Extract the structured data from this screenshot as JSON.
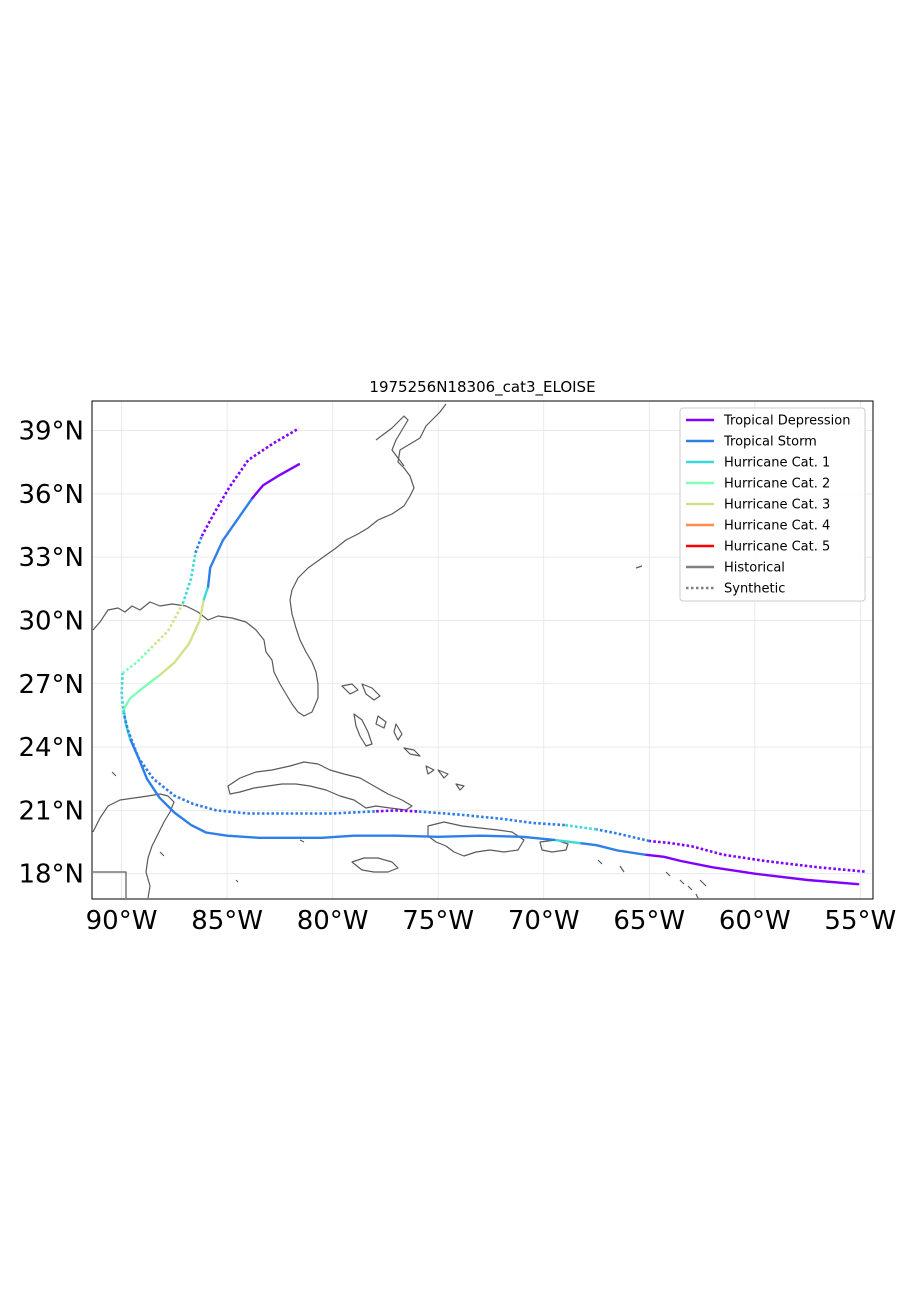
{
  "title": "1975256N18306_cat3_ELOISE",
  "map_extent": {
    "lon": [
      -91.4,
      -54.4
    ],
    "lat": [
      16.8,
      40.4
    ]
  },
  "lon_ticks": [
    {
      "value": -90,
      "label": "90°W"
    },
    {
      "value": -85,
      "label": "85°W"
    },
    {
      "value": -80,
      "label": "80°W"
    },
    {
      "value": -75,
      "label": "75°W"
    },
    {
      "value": -70,
      "label": "70°W"
    },
    {
      "value": -65,
      "label": "65°W"
    },
    {
      "value": -60,
      "label": "60°W"
    },
    {
      "value": -55,
      "label": "55°W"
    }
  ],
  "lat_ticks": [
    {
      "value": 18,
      "label": "18°N"
    },
    {
      "value": 21,
      "label": "21°N"
    },
    {
      "value": 24,
      "label": "24°N"
    },
    {
      "value": 27,
      "label": "27°N"
    },
    {
      "value": 30,
      "label": "30°N"
    },
    {
      "value": 33,
      "label": "33°N"
    },
    {
      "value": 36,
      "label": "36°N"
    },
    {
      "value": 39,
      "label": "39°N"
    }
  ],
  "legend": {
    "position": "top-right",
    "items": [
      {
        "label": "Tropical Depression",
        "color": "#8000ff",
        "style": "solid"
      },
      {
        "label": "Tropical Storm",
        "color": "#2e7fe8",
        "style": "solid"
      },
      {
        "label": "Hurricane Cat. 1",
        "color": "#3ed8d8",
        "style": "solid"
      },
      {
        "label": "Hurricane Cat. 2",
        "color": "#80ffb4",
        "style": "solid"
      },
      {
        "label": "Hurricane Cat. 3",
        "color": "#d4e18a",
        "style": "solid"
      },
      {
        "label": "Hurricane Cat. 4",
        "color": "#ff8a4a",
        "style": "solid"
      },
      {
        "label": "Hurricane Cat. 5",
        "color": "#ff0000",
        "style": "solid"
      },
      {
        "label": "Historical",
        "color": "#808080",
        "style": "solid"
      },
      {
        "label": "Synthetic",
        "color": "#808080",
        "style": "dotted"
      }
    ]
  },
  "chart_data": {
    "type": "map",
    "tracks": [
      {
        "kind": "Historical",
        "segments": [
          {
            "category": "Tropical Depression",
            "points": [
              [
                -55.1,
                17.5
              ],
              [
                -57.5,
                17.7
              ],
              [
                -60,
                18.0
              ],
              [
                -62,
                18.3
              ],
              [
                -63.5,
                18.6
              ],
              [
                -64.3,
                18.8
              ],
              [
                -65.2,
                18.9
              ]
            ]
          },
          {
            "category": "Tropical Storm",
            "points": [
              [
                -65.2,
                18.9
              ],
              [
                -66.5,
                19.1
              ],
              [
                -67.5,
                19.35
              ],
              [
                -68.3,
                19.45
              ]
            ]
          },
          {
            "category": "Hurricane Cat. 1",
            "points": [
              [
                -68.3,
                19.45
              ],
              [
                -69.5,
                19.6
              ]
            ]
          },
          {
            "category": "Tropical Storm",
            "points": [
              [
                -69.5,
                19.6
              ],
              [
                -71,
                19.75
              ],
              [
                -73,
                19.8
              ],
              [
                -75,
                19.75
              ],
              [
                -77,
                19.8
              ],
              [
                -79,
                19.8
              ],
              [
                -80.5,
                19.7
              ],
              [
                -82,
                19.7
              ],
              [
                -83.5,
                19.7
              ],
              [
                -85,
                19.8
              ],
              [
                -86,
                19.95
              ],
              [
                -86.7,
                20.3
              ],
              [
                -87.5,
                20.9
              ],
              [
                -88.2,
                21.6
              ],
              [
                -88.8,
                22.5
              ],
              [
                -89.2,
                23.5
              ],
              [
                -89.6,
                24.4
              ]
            ]
          },
          {
            "category": "Hurricane Cat. 1",
            "points": [
              [
                -89.6,
                24.4
              ],
              [
                -89.8,
                25.1
              ],
              [
                -89.9,
                25.8
              ]
            ]
          },
          {
            "category": "Hurricane Cat. 2",
            "points": [
              [
                -89.9,
                25.8
              ],
              [
                -89.6,
                26.3
              ],
              [
                -89.0,
                26.8
              ],
              [
                -88.2,
                27.4
              ]
            ]
          },
          {
            "category": "Hurricane Cat. 3",
            "points": [
              [
                -88.2,
                27.4
              ],
              [
                -87.5,
                28.0
              ],
              [
                -86.8,
                28.9
              ],
              [
                -86.3,
                30.0
              ],
              [
                -86.1,
                31.0
              ]
            ]
          },
          {
            "category": "Hurricane Cat. 1",
            "points": [
              [
                -86.1,
                31.0
              ],
              [
                -85.9,
                31.6
              ]
            ]
          },
          {
            "category": "Tropical Storm",
            "points": [
              [
                -85.9,
                31.6
              ],
              [
                -85.8,
                32.5
              ],
              [
                -85.2,
                33.8
              ],
              [
                -84.5,
                34.8
              ],
              [
                -83.8,
                35.8
              ]
            ]
          },
          {
            "category": "Tropical Depression",
            "points": [
              [
                -83.8,
                35.8
              ],
              [
                -83.3,
                36.4
              ],
              [
                -82.5,
                36.9
              ],
              [
                -81.6,
                37.4
              ]
            ]
          }
        ]
      },
      {
        "kind": "Synthetic",
        "segments": [
          {
            "category": "Tropical Depression",
            "points": [
              [
                -54.8,
                18.1
              ],
              [
                -57,
                18.3
              ],
              [
                -59.5,
                18.6
              ],
              [
                -61.5,
                18.9
              ],
              [
                -63,
                19.3
              ],
              [
                -64,
                19.45
              ],
              [
                -65,
                19.55
              ]
            ]
          },
          {
            "category": "Tropical Storm",
            "points": [
              [
                -65,
                19.55
              ],
              [
                -66.5,
                19.9
              ],
              [
                -67.5,
                20.1
              ]
            ]
          },
          {
            "category": "Hurricane Cat. 1",
            "points": [
              [
                -67.5,
                20.1
              ],
              [
                -69,
                20.3
              ]
            ]
          },
          {
            "category": "Tropical Storm",
            "points": [
              [
                -69,
                20.3
              ],
              [
                -70.5,
                20.4
              ],
              [
                -72,
                20.6
              ],
              [
                -74,
                20.8
              ],
              [
                -76,
                20.95
              ]
            ]
          },
          {
            "category": "Tropical Depression",
            "points": [
              [
                -76,
                20.95
              ],
              [
                -77,
                21.0
              ],
              [
                -78,
                20.95
              ]
            ]
          },
          {
            "category": "Tropical Storm",
            "points": [
              [
                -78,
                20.95
              ],
              [
                -80,
                20.85
              ],
              [
                -82,
                20.85
              ],
              [
                -84,
                20.85
              ],
              [
                -85.5,
                21.0
              ],
              [
                -86.6,
                21.3
              ],
              [
                -87.5,
                21.7
              ],
              [
                -88.5,
                22.5
              ],
              [
                -89.2,
                23.5
              ],
              [
                -89.7,
                24.8
              ],
              [
                -89.9,
                25.6
              ]
            ]
          },
          {
            "category": "Hurricane Cat. 1",
            "points": [
              [
                -89.9,
                25.6
              ],
              [
                -90,
                26.5
              ],
              [
                -89.95,
                27.5
              ]
            ]
          },
          {
            "category": "Hurricane Cat. 2",
            "points": [
              [
                -89.95,
                27.5
              ],
              [
                -89.3,
                28.0
              ],
              [
                -88.6,
                28.7
              ]
            ]
          },
          {
            "category": "Hurricane Cat. 3",
            "points": [
              [
                -88.6,
                28.7
              ],
              [
                -87.8,
                29.5
              ],
              [
                -87.1,
                30.8
              ]
            ]
          },
          {
            "category": "Hurricane Cat. 1",
            "points": [
              [
                -87.1,
                30.8
              ],
              [
                -86.7,
                32.0
              ],
              [
                -86.5,
                33.2
              ]
            ]
          },
          {
            "category": "Tropical Storm",
            "points": [
              [
                -86.5,
                33.2
              ],
              [
                -86.2,
                34.0
              ]
            ]
          },
          {
            "category": "Tropical Depression",
            "points": [
              [
                -86.2,
                34.0
              ],
              [
                -85.6,
                35.1
              ],
              [
                -84.9,
                36.3
              ],
              [
                -84,
                37.6
              ],
              [
                -82.8,
                38.4
              ],
              [
                -81.6,
                39.1
              ]
            ]
          }
        ]
      }
    ]
  }
}
